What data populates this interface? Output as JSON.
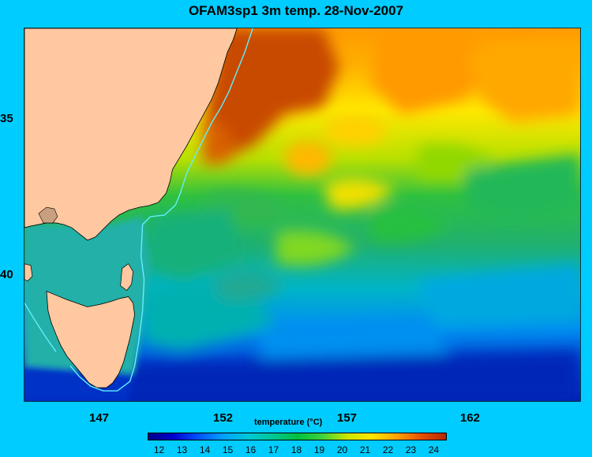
{
  "title": "OFAM3sp1 3m temp. 28-Nov-2007",
  "y_ticks": [
    {
      "label": "35"
    },
    {
      "label": "40"
    }
  ],
  "x_ticks": [
    {
      "label": "147"
    },
    {
      "label": "152"
    },
    {
      "label": "157"
    },
    {
      "label": "162"
    }
  ],
  "colorbar": {
    "title": "temperature (°C)",
    "ticks": [
      "12",
      "13",
      "14",
      "15",
      "16",
      "17",
      "18",
      "19",
      "20",
      "21",
      "22",
      "23",
      "24"
    ],
    "range": [
      11.5,
      24.5
    ],
    "colors": [
      "#00008b",
      "#0000cd",
      "#0050ff",
      "#00a0ff",
      "#00c8d8",
      "#00c898",
      "#00c040",
      "#3cd23c",
      "#c8e600",
      "#ffe600",
      "#ffa500",
      "#e65000",
      "#b42800"
    ]
  },
  "colors": {
    "background": "#00ccff",
    "land": "#ffc8a0",
    "warm": "#c84a00",
    "cold": "#0a14a0"
  }
}
